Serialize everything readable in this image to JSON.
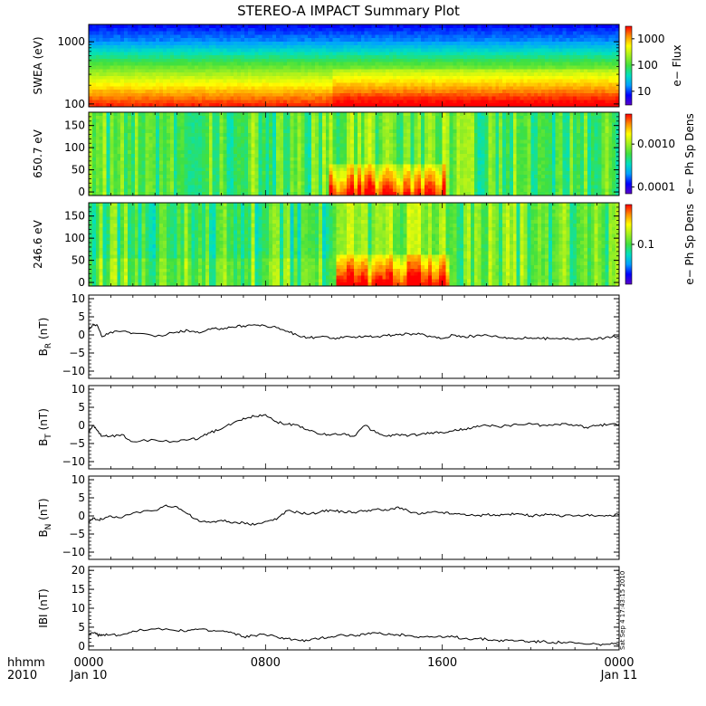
{
  "title": "STEREO-A IMPACT Summary Plot",
  "timestamp": "Sat Sep  4 17:43:15 2010",
  "colors": {
    "foreground": "#000000",
    "background": "#ffffff",
    "colormap": [
      "#5a00c8",
      "#0000ff",
      "#00a0ff",
      "#00e0c0",
      "#40e040",
      "#a0f020",
      "#ffff00",
      "#ff9000",
      "#ff0000"
    ]
  },
  "time_axis": {
    "corner_labels": [
      "hhmm",
      "2010"
    ],
    "range_hours": [
      0,
      24
    ],
    "ticks": [
      {
        "hours": 0,
        "label": "0000",
        "sublabel": "Jan 10"
      },
      {
        "hours": 8,
        "label": "0800",
        "sublabel": ""
      },
      {
        "hours": 16,
        "label": "1600",
        "sublabel": ""
      },
      {
        "hours": 24,
        "label": "0000",
        "sublabel": "Jan 11"
      }
    ]
  },
  "chart_data": [
    {
      "type": "heatmap",
      "ylabel": "SWEA (eV)",
      "yscale": "log",
      "ylim": [
        90,
        1900
      ],
      "yticks": [
        {
          "value": 100,
          "label": "100"
        },
        {
          "value": 1000,
          "label": "1000"
        }
      ],
      "colorbar": {
        "label": "e− Flux",
        "scale": "log",
        "range": [
          3,
          3000
        ],
        "ticks": [
          {
            "value": 10,
            "label": "10"
          },
          {
            "value": 100,
            "label": "100"
          },
          {
            "value": 1000,
            "label": "1000"
          }
        ]
      },
      "description_bands": "flux highest (red) below ~200 eV, green ~300-600 eV, blue above ~1000 eV; enhanced after ~11:00"
    },
    {
      "type": "heatmap",
      "ylabel": "650.7 eV",
      "yscale": "linear",
      "ylim": [
        -8,
        180
      ],
      "yticks": [
        {
          "value": 0,
          "label": "0"
        },
        {
          "value": 50,
          "label": "50"
        },
        {
          "value": 100,
          "label": "100"
        },
        {
          "value": 150,
          "label": "150"
        }
      ],
      "colorbar": {
        "label": "e− Ph Sp Dens",
        "scale": "log",
        "range": [
          7e-05,
          0.005
        ],
        "ticks": [
          {
            "value": 0.0001,
            "label": "0.0001"
          },
          {
            "value": 0.001,
            "label": "0.0010"
          }
        ]
      },
      "enhancement": {
        "start_hours": 10.9,
        "end_hours": 16.2,
        "pitch_max": 70
      }
    },
    {
      "type": "heatmap",
      "ylabel": "246.6 eV",
      "yscale": "linear",
      "ylim": [
        -8,
        180
      ],
      "yticks": [
        {
          "value": 0,
          "label": "0"
        },
        {
          "value": 50,
          "label": "50"
        },
        {
          "value": 100,
          "label": "100"
        },
        {
          "value": 150,
          "label": "150"
        }
      ],
      "colorbar": {
        "label": "e− Ph Sp Dens",
        "scale": "log",
        "range": [
          0.02,
          0.5
        ],
        "ticks": [
          {
            "value": 0.1,
            "label": "0.1"
          }
        ]
      },
      "enhancement": {
        "start_hours": 11.2,
        "end_hours": 16.3,
        "pitch_max": 70
      }
    },
    {
      "type": "line",
      "ylabel": "B_R (nT)",
      "ylabel_main": "B",
      "ylabel_sub": "R",
      "ylabel_unit": " (nT)",
      "ylim": [
        -12,
        11
      ],
      "yticks": [
        {
          "value": -10,
          "label": "−10"
        },
        {
          "value": -5,
          "label": "−5"
        },
        {
          "value": 0,
          "label": "0"
        },
        {
          "value": 5,
          "label": "5"
        },
        {
          "value": 10,
          "label": "10"
        }
      ],
      "x": [
        0,
        0.2,
        0.4,
        0.6,
        1,
        1.5,
        2,
        3,
        4,
        4.5,
        5,
        5.5,
        6,
        6.5,
        7,
        7.5,
        8,
        8.5,
        9,
        9.5,
        10,
        10.5,
        11,
        11.5,
        12,
        12.5,
        13,
        13.5,
        14,
        14.5,
        15,
        15.5,
        16,
        16.5,
        17,
        17.5,
        18,
        18.5,
        19,
        19.5,
        20,
        20.5,
        21,
        21.5,
        22,
        22.5,
        23,
        23.5,
        24
      ],
      "values": [
        1.5,
        3,
        2.5,
        -0.5,
        0.8,
        1,
        0.5,
        -0.5,
        0.8,
        1.2,
        0.5,
        1.5,
        1.8,
        2.2,
        2.5,
        2.8,
        2.5,
        2,
        1,
        -0.3,
        -0.8,
        -0.5,
        -1,
        -0.8,
        -0.5,
        -0.3,
        -0.5,
        -0.2,
        0,
        0.3,
        0.2,
        -0.5,
        -1,
        0,
        -0.5,
        -0.3,
        0,
        -0.5,
        -0.8,
        -1,
        -0.8,
        -1,
        -1,
        -0.8,
        -1.2,
        -1,
        -1.2,
        -0.5,
        -0.5
      ]
    },
    {
      "type": "line",
      "ylabel": "B_T (nT)",
      "ylabel_main": "B",
      "ylabel_sub": "T",
      "ylabel_unit": " (nT)",
      "ylim": [
        -12,
        11
      ],
      "yticks": [
        {
          "value": -10,
          "label": "−10"
        },
        {
          "value": -5,
          "label": "−5"
        },
        {
          "value": 0,
          "label": "0"
        },
        {
          "value": 5,
          "label": "5"
        },
        {
          "value": 10,
          "label": "10"
        }
      ],
      "x": [
        0,
        0.2,
        0.4,
        0.6,
        1,
        1.5,
        2,
        3,
        4,
        4.5,
        5,
        5.5,
        6,
        6.5,
        7,
        7.5,
        8,
        8.5,
        9,
        9.5,
        10,
        10.5,
        11,
        11.5,
        12,
        12.5,
        13,
        13.5,
        14,
        14.5,
        15,
        15.5,
        16,
        16.5,
        17,
        17.5,
        18,
        18.5,
        19,
        19.5,
        20,
        20.5,
        21,
        21.5,
        22,
        22.5,
        23,
        23.5,
        24
      ],
      "values": [
        -2,
        0,
        -1.5,
        -3,
        -3,
        -2.5,
        -4.5,
        -4,
        -4.5,
        -4,
        -3.5,
        -2,
        -1,
        0.5,
        2,
        2.5,
        3,
        1,
        0.3,
        0,
        -1.5,
        -2.5,
        -2.5,
        -2.3,
        -3,
        0,
        -2,
        -3,
        -2.5,
        -2.8,
        -2.5,
        -2,
        -2,
        -1.5,
        -1,
        -0.5,
        0,
        -0.3,
        0,
        0.2,
        0.5,
        0,
        0,
        0.5,
        0,
        -0.5,
        0,
        0.2,
        0.3
      ]
    },
    {
      "type": "line",
      "ylabel": "B_N (nT)",
      "ylabel_main": "B",
      "ylabel_sub": "N",
      "ylabel_unit": " (nT)",
      "ylim": [
        -12,
        11
      ],
      "yticks": [
        {
          "value": -10,
          "label": "−10"
        },
        {
          "value": -5,
          "label": "−5"
        },
        {
          "value": 0,
          "label": "0"
        },
        {
          "value": 5,
          "label": "5"
        },
        {
          "value": 10,
          "label": "10"
        }
      ],
      "x": [
        0,
        0.2,
        0.4,
        0.6,
        1,
        1.5,
        2,
        3,
        3.5,
        4,
        4.5,
        5,
        5.5,
        6,
        6.5,
        7,
        7.5,
        8,
        8.5,
        9,
        9.5,
        10,
        10.5,
        11,
        11.5,
        12,
        12.5,
        13,
        13.5,
        14,
        14.5,
        15,
        15.5,
        16,
        16.5,
        17,
        17.5,
        18,
        18.5,
        19,
        19.5,
        20,
        20.5,
        21,
        21.5,
        22,
        22.5,
        23,
        23.5,
        24
      ],
      "values": [
        -2,
        -0.5,
        -1,
        -1,
        0,
        -0.5,
        0.8,
        1.5,
        3,
        2.5,
        0.5,
        -1.5,
        -1.8,
        -1.2,
        -2,
        -1.8,
        -2.5,
        -1.5,
        -1,
        1.5,
        1,
        0.5,
        1.2,
        1.5,
        1.2,
        1,
        1.5,
        1.8,
        1.5,
        2.5,
        1.2,
        0.5,
        1,
        1,
        0.5,
        0.5,
        0,
        0.3,
        0.2,
        0.5,
        0.5,
        0,
        0.3,
        0.2,
        0,
        0,
        0.3,
        0,
        0,
        0.3
      ]
    },
    {
      "type": "line",
      "ylabel": "|B| (nT)",
      "ylabel_main": "IBI",
      "ylabel_sub": "",
      "ylabel_unit": " (nT)",
      "ylim": [
        -1,
        21
      ],
      "yticks": [
        {
          "value": 0,
          "label": "0"
        },
        {
          "value": 5,
          "label": "5"
        },
        {
          "value": 10,
          "label": "10"
        },
        {
          "value": 15,
          "label": "15"
        },
        {
          "value": 20,
          "label": "20"
        }
      ],
      "x": [
        0,
        0.2,
        0.4,
        0.6,
        1,
        1.5,
        2,
        3,
        4,
        4.5,
        5,
        5.5,
        6,
        6.5,
        7,
        7.5,
        8,
        8.5,
        9,
        9.5,
        10,
        10.5,
        11,
        11.5,
        12,
        12.5,
        13,
        13.5,
        14,
        14.5,
        15,
        15.5,
        16,
        16.5,
        17,
        17.5,
        18,
        18.5,
        19,
        19.5,
        20,
        20.5,
        21,
        21.5,
        22,
        22.5,
        23,
        23.5,
        24
      ],
      "values": [
        3,
        3.5,
        3,
        2.8,
        3,
        3,
        4,
        4.5,
        4,
        4.2,
        4.5,
        4,
        4,
        3.5,
        2.5,
        2.8,
        3,
        2.5,
        2,
        1.5,
        1.5,
        2.2,
        2.5,
        3,
        2.8,
        3,
        3.5,
        3,
        3,
        2.8,
        2.5,
        2.5,
        2.3,
        2.5,
        2,
        2,
        1.8,
        1.5,
        1.5,
        1.5,
        1.2,
        1.2,
        1,
        1,
        0.8,
        0.5,
        0.5,
        0.5,
        0.5
      ]
    }
  ]
}
